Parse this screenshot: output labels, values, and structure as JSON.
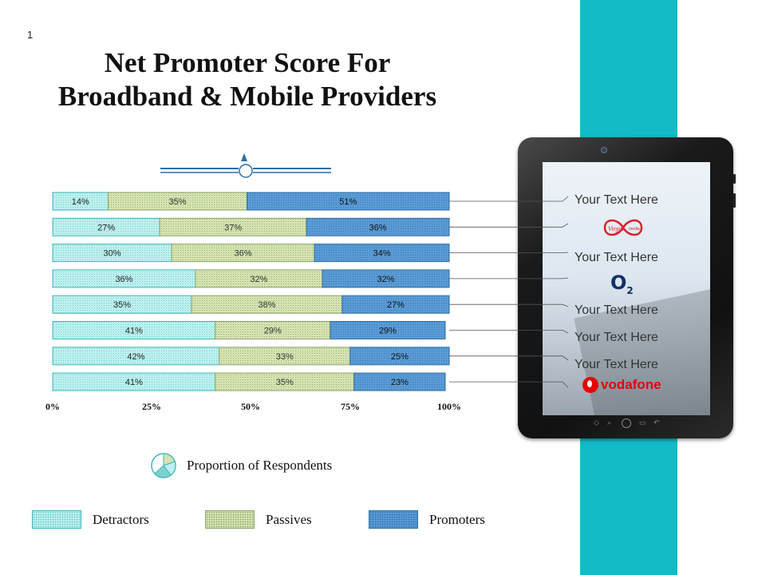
{
  "slide": {
    "number": "1",
    "title": "Net Promoter Score For Broadband & Mobile Providers"
  },
  "colors": {
    "detractors": "#bdf0ee",
    "passives": "#d6e3b1",
    "promoters": "#5b9bd5",
    "strip": "#12bcc6",
    "ornament": "#2e6fa8"
  },
  "chart_data": {
    "type": "bar",
    "orientation": "horizontal",
    "stacked": true,
    "xlim": [
      0,
      100
    ],
    "x_ticks": [
      "0%",
      "25%",
      "50%",
      "75%",
      "100%"
    ],
    "subtitle": "Proportion of Respondents",
    "series": [
      {
        "name": "Detractors",
        "values": [
          14,
          27,
          30,
          36,
          35,
          41,
          42,
          41
        ]
      },
      {
        "name": "Passives",
        "values": [
          35,
          37,
          36,
          32,
          38,
          29,
          33,
          35
        ]
      },
      {
        "name": "Promoters",
        "values": [
          51,
          36,
          34,
          32,
          27,
          29,
          25,
          23
        ]
      }
    ],
    "legend_position": "bottom"
  },
  "tablet": {
    "labels": [
      "Your Text Here",
      "Your Text Here",
      "Your Text Here",
      "Your Text Here",
      "Your Text Here"
    ],
    "logos": [
      {
        "name": "virgin-media-logo",
        "text": "Virgin media"
      },
      {
        "name": "o2-logo",
        "text": "O",
        "sub": "2"
      },
      {
        "name": "vodafone-logo",
        "text": "vodafone"
      }
    ]
  }
}
